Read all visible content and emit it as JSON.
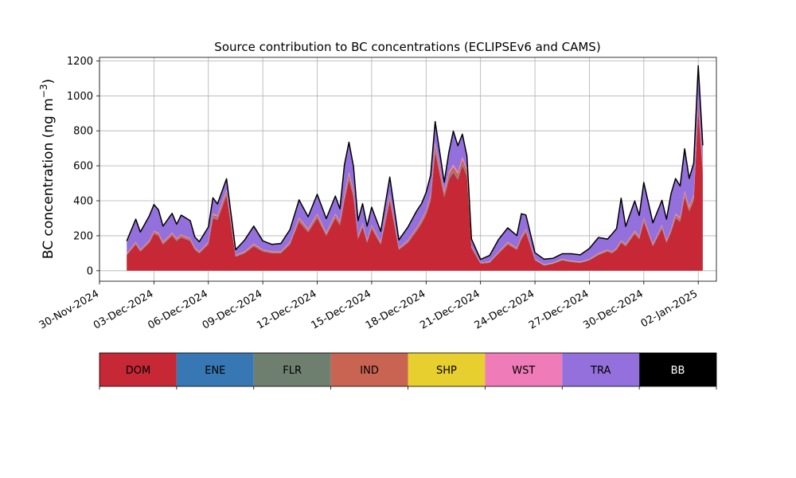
{
  "chart_data": {
    "type": "area",
    "title": "Source contribution to BC concentrations (ECLIPSEv6 and CAMS)",
    "xlabel": "",
    "ylabel": "BC concentration (ng m",
    "ylabel_superscript": "−3",
    "ylabel_suffix": ")",
    "ylim": [
      -60,
      1220
    ],
    "yticks": [
      0,
      200,
      400,
      600,
      800,
      1000,
      1200
    ],
    "xlim": [
      "2024-11-30T00:00",
      "2025-01-03T00:00"
    ],
    "xticks": [
      "30-Nov-2024",
      "03-Dec-2024",
      "06-Dec-2024",
      "09-Dec-2024",
      "12-Dec-2024",
      "15-Dec-2024",
      "18-Dec-2024",
      "21-Dec-2024",
      "24-Dec-2024",
      "27-Dec-2024",
      "30-Dec-2024",
      "02-Jan-2025"
    ],
    "xtick_dates": [
      "2024-11-30",
      "2024-12-03",
      "2024-12-06",
      "2024-12-09",
      "2024-12-12",
      "2024-12-15",
      "2024-12-18",
      "2024-12-21",
      "2024-12-24",
      "2024-12-27",
      "2024-12-30",
      "2025-01-02"
    ],
    "grid": true,
    "x": [
      "2024-12-01T12:00",
      "2024-12-02T00:00",
      "2024-12-02T06:00",
      "2024-12-02T18:00",
      "2024-12-03T00:00",
      "2024-12-03T06:00",
      "2024-12-03T12:00",
      "2024-12-04T00:00",
      "2024-12-04T06:00",
      "2024-12-04T12:00",
      "2024-12-05T00:00",
      "2024-12-05T06:00",
      "2024-12-05T12:00",
      "2024-12-06T00:00",
      "2024-12-06T06:00",
      "2024-12-06T12:00",
      "2024-12-07T00:00",
      "2024-12-07T12:00",
      "2024-12-08T00:00",
      "2024-12-08T12:00",
      "2024-12-09T00:00",
      "2024-12-09T12:00",
      "2024-12-10T00:00",
      "2024-12-10T12:00",
      "2024-12-11T00:00",
      "2024-12-11T12:00",
      "2024-12-12T00:00",
      "2024-12-12T12:00",
      "2024-12-13T00:00",
      "2024-12-13T06:00",
      "2024-12-13T12:00",
      "2024-12-13T18:00",
      "2024-12-14T00:00",
      "2024-12-14T06:00",
      "2024-12-14T12:00",
      "2024-12-14T18:00",
      "2024-12-15T00:00",
      "2024-12-15T12:00",
      "2024-12-16T00:00",
      "2024-12-16T12:00",
      "2024-12-17T00:00",
      "2024-12-17T12:00",
      "2024-12-17T18:00",
      "2024-12-18T00:00",
      "2024-12-18T06:00",
      "2024-12-18T12:00",
      "2024-12-19T00:00",
      "2024-12-19T06:00",
      "2024-12-19T12:00",
      "2024-12-19T18:00",
      "2024-12-20T00:00",
      "2024-12-20T06:00",
      "2024-12-20T12:00",
      "2024-12-21T00:00",
      "2024-12-21T12:00",
      "2024-12-22T00:00",
      "2024-12-22T12:00",
      "2024-12-23T00:00",
      "2024-12-23T06:00",
      "2024-12-23T12:00",
      "2024-12-24T00:00",
      "2024-12-24T12:00",
      "2024-12-25T00:00",
      "2024-12-25T12:00",
      "2024-12-26T00:00",
      "2024-12-26T12:00",
      "2024-12-27T00:00",
      "2024-12-27T12:00",
      "2024-12-28T00:00",
      "2024-12-28T06:00",
      "2024-12-28T12:00",
      "2024-12-28T18:00",
      "2024-12-29T00:00",
      "2024-12-29T12:00",
      "2024-12-29T18:00",
      "2024-12-30T00:00",
      "2024-12-30T12:00",
      "2024-12-31T00:00",
      "2024-12-31T06:00",
      "2024-12-31T12:00",
      "2024-12-31T18:00",
      "2025-01-01T00:00",
      "2025-01-01T06:00",
      "2025-01-01T12:00",
      "2025-01-01T18:00",
      "2025-01-02T00:00",
      "2025-01-02T06:00"
    ],
    "series": [
      {
        "name": "DOM",
        "values": [
          90,
          150,
          110,
          160,
          210,
          200,
          150,
          200,
          170,
          190,
          170,
          120,
          100,
          150,
          300,
          290,
          430,
          80,
          100,
          140,
          110,
          100,
          100,
          150,
          280,
          220,
          300,
          200,
          300,
          260,
          400,
          520,
          420,
          180,
          250,
          160,
          240,
          150,
          400,
          120,
          160,
          230,
          270,
          320,
          400,
          680,
          420,
          520,
          560,
          520,
          600,
          540,
          130,
          40,
          45,
          100,
          150,
          120,
          180,
          220,
          60,
          30,
          40,
          60,
          50,
          45,
          60,
          90,
          110,
          100,
          120,
          160,
          140,
          210,
          180,
          280,
          140,
          240,
          160,
          220,
          300,
          280,
          420,
          340,
          400,
          920,
          560
        ]
      },
      {
        "name": "ENE",
        "values": [
          1,
          2,
          1,
          2,
          2,
          2,
          2,
          2,
          2,
          2,
          2,
          2,
          1,
          2,
          3,
          3,
          4,
          1,
          1,
          2,
          1,
          1,
          1,
          2,
          3,
          2,
          3,
          2,
          3,
          3,
          4,
          5,
          4,
          2,
          3,
          2,
          3,
          2,
          4,
          1,
          2,
          3,
          3,
          3,
          4,
          6,
          4,
          5,
          5,
          5,
          6,
          5,
          1,
          1,
          1,
          1,
          2,
          1,
          2,
          2,
          1,
          1,
          1,
          1,
          1,
          1,
          1,
          1,
          1,
          1,
          1,
          2,
          2,
          2,
          2,
          3,
          2,
          3,
          2,
          2,
          3,
          3,
          4,
          3,
          4,
          9,
          6
        ]
      },
      {
        "name": "FLR",
        "values": [
          1,
          1,
          1,
          1,
          1,
          1,
          1,
          1,
          1,
          1,
          1,
          1,
          1,
          1,
          2,
          2,
          2,
          1,
          1,
          1,
          1,
          1,
          1,
          1,
          2,
          1,
          2,
          1,
          2,
          2,
          2,
          3,
          2,
          1,
          2,
          1,
          2,
          1,
          2,
          1,
          1,
          2,
          2,
          2,
          2,
          3,
          2,
          3,
          3,
          3,
          3,
          3,
          1,
          1,
          1,
          1,
          1,
          1,
          1,
          1,
          1,
          1,
          1,
          1,
          1,
          1,
          1,
          1,
          1,
          1,
          1,
          1,
          1,
          2,
          1,
          2,
          1,
          2,
          1,
          2,
          2,
          2,
          3,
          2,
          2,
          5,
          3
        ]
      },
      {
        "name": "IND",
        "values": [
          5,
          8,
          6,
          8,
          10,
          10,
          8,
          10,
          9,
          10,
          9,
          7,
          6,
          8,
          15,
          15,
          20,
          5,
          6,
          8,
          6,
          6,
          6,
          8,
          14,
          11,
          15,
          10,
          15,
          13,
          20,
          25,
          20,
          9,
          12,
          8,
          12,
          8,
          20,
          6,
          8,
          11,
          13,
          15,
          20,
          30,
          20,
          25,
          27,
          25,
          28,
          26,
          7,
          3,
          3,
          5,
          8,
          6,
          9,
          11,
          4,
          2,
          2,
          3,
          3,
          2,
          3,
          5,
          6,
          5,
          6,
          8,
          7,
          10,
          9,
          14,
          7,
          12,
          8,
          11,
          15,
          14,
          20,
          16,
          19,
          40,
          25
        ]
      },
      {
        "name": "SHP",
        "values": [
          1,
          1,
          1,
          1,
          1,
          1,
          1,
          1,
          1,
          1,
          1,
          1,
          1,
          1,
          1,
          1,
          2,
          1,
          1,
          1,
          1,
          1,
          1,
          1,
          1,
          1,
          1,
          1,
          1,
          1,
          2,
          2,
          2,
          1,
          1,
          1,
          1,
          1,
          2,
          1,
          1,
          1,
          1,
          1,
          2,
          2,
          2,
          2,
          2,
          2,
          2,
          2,
          1,
          1,
          1,
          1,
          1,
          1,
          1,
          1,
          1,
          1,
          1,
          1,
          1,
          1,
          1,
          1,
          1,
          1,
          1,
          1,
          1,
          1,
          1,
          1,
          1,
          1,
          1,
          1,
          1,
          1,
          2,
          1,
          2,
          3,
          2
        ]
      },
      {
        "name": "WST",
        "values": [
          2,
          3,
          2,
          3,
          4,
          4,
          3,
          4,
          3,
          4,
          3,
          2,
          2,
          3,
          6,
          6,
          8,
          2,
          2,
          3,
          2,
          2,
          2,
          3,
          5,
          4,
          6,
          4,
          6,
          5,
          8,
          10,
          8,
          3,
          5,
          3,
          5,
          3,
          8,
          2,
          3,
          4,
          5,
          6,
          8,
          12,
          8,
          10,
          11,
          10,
          12,
          10,
          2,
          1,
          1,
          2,
          3,
          2,
          3,
          4,
          1,
          1,
          1,
          1,
          1,
          1,
          1,
          2,
          2,
          2,
          2,
          3,
          3,
          4,
          3,
          5,
          3,
          5,
          3,
          4,
          6,
          5,
          8,
          6,
          8,
          15,
          10
        ]
      },
      {
        "name": "TRA",
        "values": [
          70,
          130,
          100,
          140,
          150,
          130,
          90,
          110,
          80,
          110,
          100,
          60,
          55,
          85,
          90,
          65,
          60,
          30,
          65,
          100,
          50,
          40,
          45,
          70,
          100,
          70,
          110,
          80,
          100,
          70,
          170,
          170,
          140,
          90,
          110,
          80,
          100,
          60,
          100,
          45,
          75,
          95,
          90,
          100,
          110,
          120,
          50,
          110,
          190,
          150,
          130,
          70,
          40,
          18,
          35,
          70,
          80,
          70,
          130,
          80,
          35,
          30,
          25,
          30,
          40,
          40,
          60,
          90,
          60,
          100,
          110,
          240,
          100,
          170,
          120,
          200,
          120,
          140,
          120,
          200,
          200,
          180,
          240,
          160,
          180,
          180,
          110
        ]
      },
      {
        "name": "BB",
        "values": [
          0,
          0,
          0,
          0,
          0,
          0,
          0,
          0,
          0,
          0,
          0,
          0,
          0,
          0,
          0,
          0,
          0,
          0,
          0,
          0,
          0,
          0,
          0,
          0,
          0,
          0,
          0,
          0,
          0,
          0,
          0,
          0,
          0,
          0,
          0,
          0,
          0,
          0,
          0,
          0,
          0,
          0,
          0,
          0,
          0,
          0,
          0,
          0,
          0,
          0,
          0,
          0,
          0,
          0,
          0,
          0,
          0,
          0,
          0,
          0,
          0,
          0,
          0,
          0,
          0,
          0,
          0,
          0,
          0,
          0,
          0,
          0,
          0,
          0,
          0,
          0,
          0,
          0,
          0,
          0,
          0,
          0,
          0,
          0,
          0,
          0,
          0
        ]
      }
    ],
    "colors": {
      "DOM": "#c62836",
      "ENE": "#3778b4",
      "FLR": "#6e7f6f",
      "IND": "#c96452",
      "SHP": "#e6cf2e",
      "WST": "#ef7cb8",
      "TRA": "#9370db",
      "BB": "#000000"
    },
    "legend": {
      "position": "bottom",
      "entries": [
        "DOM",
        "ENE",
        "FLR",
        "IND",
        "SHP",
        "WST",
        "TRA",
        "BB"
      ],
      "text_colors": [
        "#000000",
        "#000000",
        "#000000",
        "#000000",
        "#000000",
        "#000000",
        "#000000",
        "#ffffff"
      ]
    }
  }
}
